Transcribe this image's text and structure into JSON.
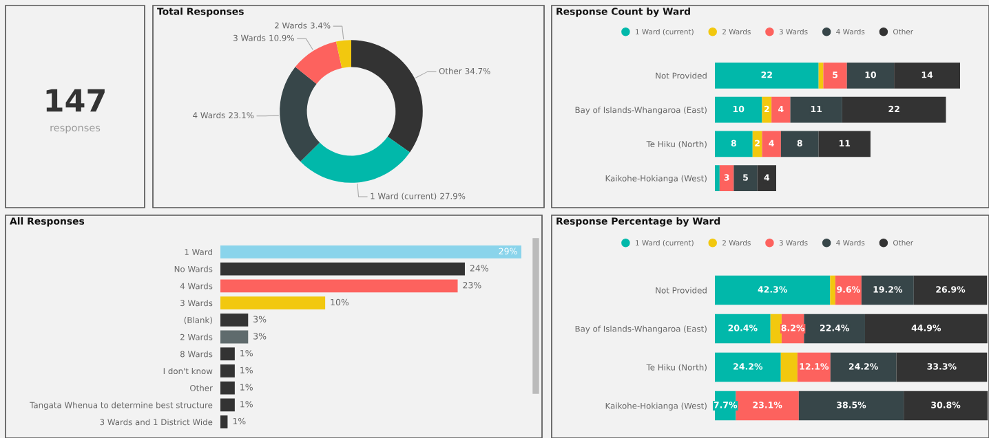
{
  "chart_data": [
    {
      "type": "other",
      "annotations": [
        "147",
        "responses"
      ]
    },
    {
      "type": "donut",
      "title": "Total Responses",
      "categories": [
        "Other",
        "1 Ward (current)",
        "4 Wards",
        "3 Wards",
        "2 Wards"
      ],
      "values": [
        34.7,
        27.9,
        23.1,
        10.9,
        3.4
      ],
      "colors": [
        "#333333",
        "#01b8aa",
        "#374649",
        "#fd625e",
        "#f2c80f"
      ],
      "value_labels": [
        "34.7%",
        "27.9%",
        "23.1%",
        "10.9%",
        "3.4%"
      ]
    },
    {
      "type": "bar",
      "title": "Response Count by Ward",
      "orientation": "horizontal",
      "stacked": true,
      "legend": "top",
      "marker": "circle",
      "tick_labels": "y",
      "categories": [
        "Not Provided",
        "Bay of Islands-Whangaroa (East)",
        "Te Hiku (North)",
        "Kaikohe-Hokianga (West)"
      ],
      "series": [
        {
          "name": "1 Ward (current)",
          "color": "#01b8aa",
          "values": [
            22,
            10,
            8,
            1
          ],
          "value_labels": [
            "22",
            "10",
            "8",
            null
          ]
        },
        {
          "name": "2 Wards",
          "color": "#f2c80f",
          "values": [
            1,
            2,
            2,
            null
          ],
          "value_labels": [
            null,
            "2",
            "2",
            null
          ]
        },
        {
          "name": "3 Wards",
          "color": "#fd625e",
          "values": [
            5,
            4,
            4,
            3
          ],
          "value_labels": [
            "5",
            "4",
            "4",
            "3"
          ]
        },
        {
          "name": "4 Wards",
          "color": "#374649",
          "values": [
            10,
            11,
            8,
            5
          ],
          "value_labels": [
            "10",
            "11",
            "8",
            "5"
          ]
        },
        {
          "name": "Other",
          "color": "#333333",
          "values": [
            14,
            22,
            11,
            4
          ],
          "value_labels": [
            "14",
            "22",
            "11",
            "4"
          ]
        }
      ]
    },
    {
      "type": "bar",
      "title": "All Responses",
      "orientation": "horizontal",
      "tick_labels": "y",
      "categories": [
        "1 Ward",
        "No Wards",
        "4 Wards",
        "3 Wards",
        "(Blank)",
        "2 Wards",
        "8 Wards",
        "I don't know",
        "Other",
        "Tangata Whenua to determine best structure",
        "3 Wards and 1 District Wide"
      ],
      "values": [
        29.3,
        23.8,
        23.1,
        10.2,
        2.7,
        2.7,
        1.4,
        1.4,
        1.4,
        1.4,
        0.7
      ],
      "colors": [
        "#8ad4eb",
        "#333333",
        "#fd625e",
        "#f2c80f",
        "#333333",
        "#5f6b6d",
        "#333333",
        "#333333",
        "#333333",
        "#333333",
        "#333333"
      ],
      "value_labels": [
        "29%",
        "24%",
        "23%",
        "10%",
        "3%",
        "3%",
        "1%",
        "1%",
        "1%",
        "1%",
        "1%"
      ]
    },
    {
      "type": "bar",
      "title": "Response Percentage by Ward",
      "orientation": "horizontal",
      "stacked": true,
      "legend": "top",
      "marker": "circle",
      "tick_labels": "y",
      "categories": [
        "Not Provided",
        "Bay of Islands-Whangaroa (East)",
        "Te Hiku (North)",
        "Kaikohe-Hokianga (West)"
      ],
      "series": [
        {
          "name": "1 Ward (current)",
          "color": "#01b8aa",
          "values": [
            42.3,
            20.4,
            24.2,
            7.7
          ],
          "value_labels": [
            "42.3%",
            "20.4%",
            "24.2%",
            "7.7%"
          ]
        },
        {
          "name": "2 Wards",
          "color": "#f2c80f",
          "values": [
            1.9,
            4.1,
            6.1,
            null
          ],
          "value_labels": [
            null,
            null,
            null,
            null
          ]
        },
        {
          "name": "3 Wards",
          "color": "#fd625e",
          "values": [
            9.6,
            8.2,
            12.1,
            23.1
          ],
          "value_labels": [
            "9.6%",
            "8.2%",
            "12.1%",
            "23.1%"
          ]
        },
        {
          "name": "4 Wards",
          "color": "#374649",
          "values": [
            19.2,
            22.4,
            24.2,
            38.5
          ],
          "value_labels": [
            "19.2%",
            "22.4%",
            "24.2%",
            "38.5%"
          ]
        },
        {
          "name": "Other",
          "color": "#333333",
          "values": [
            26.9,
            44.9,
            33.3,
            30.8
          ],
          "value_labels": [
            "26.9%",
            "44.9%",
            "33.3%",
            "30.8%"
          ]
        }
      ]
    }
  ]
}
